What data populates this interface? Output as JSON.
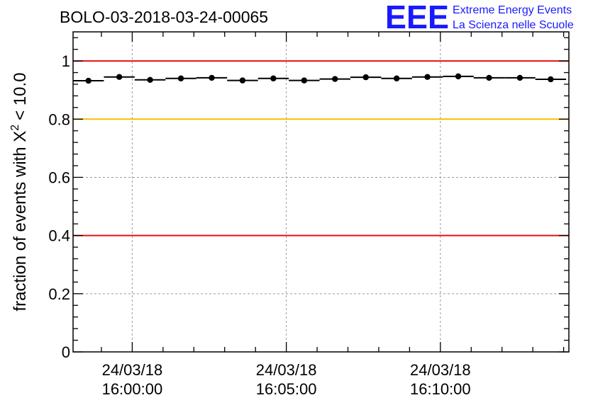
{
  "chart_data": {
    "type": "scatter",
    "title": "BOLO-03-2018-03-24-00065",
    "ylabel_prefix": "fraction of events with",
    "ylabel_symbol": "X",
    "ylabel_superscript": "2",
    "ylabel_suffix": "< 10.0",
    "xlabel": "",
    "ylim": [
      0,
      1.1
    ],
    "yticks": [
      0,
      0.2,
      0.4,
      0.6,
      0.8,
      1
    ],
    "ytick_labels": [
      "0",
      "0.2",
      "0.4",
      "0.6",
      "0.8",
      "1"
    ],
    "xlim_minutes": [
      -1.92,
      14.17
    ],
    "xticks": [
      {
        "minute": 0,
        "date": "24/03/18",
        "time": "16:00:00"
      },
      {
        "minute": 5,
        "date": "24/03/18",
        "time": "16:05:00"
      },
      {
        "minute": 10,
        "date": "24/03/18",
        "time": "16:10:00"
      }
    ],
    "grid": true,
    "reference_lines": [
      {
        "y": 1.0,
        "color": "#e8110f"
      },
      {
        "y": 0.8,
        "color": "#f5c000"
      },
      {
        "y": 0.4,
        "color": "#e8110f"
      }
    ],
    "series": [
      {
        "name": "fraction",
        "bin_width_minutes": 1.0,
        "x_minutes": [
          -1.42,
          -0.42,
          0.58,
          1.58,
          2.58,
          3.58,
          4.58,
          5.58,
          6.58,
          7.58,
          8.58,
          9.58,
          10.58,
          11.58,
          12.58,
          13.58
        ],
        "y": [
          0.932,
          0.945,
          0.935,
          0.94,
          0.942,
          0.933,
          0.94,
          0.933,
          0.938,
          0.944,
          0.94,
          0.945,
          0.947,
          0.942,
          0.942,
          0.937
        ]
      }
    ]
  },
  "logo": {
    "text": "EEE",
    "line1": "Extreme Energy Events",
    "line2": "La Scienza nelle Scuole",
    "color": "#1a1aff"
  }
}
